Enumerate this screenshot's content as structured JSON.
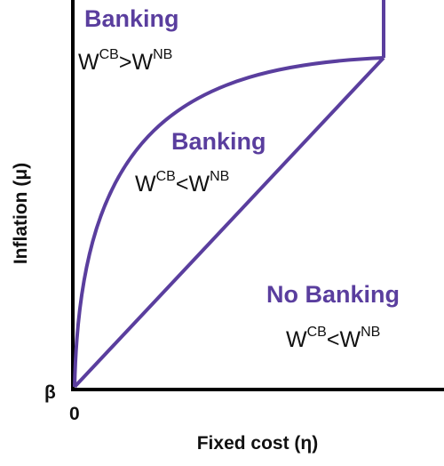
{
  "axes": {
    "x_label": "Fixed cost (η)",
    "y_label": "Inflation (μ)",
    "origin_x": "0",
    "origin_y": "β"
  },
  "regions": [
    {
      "title": "Banking",
      "condition": {
        "left": "W",
        "left_sup": "CB",
        "op": ">",
        "right": "W",
        "right_sup": "NB"
      }
    },
    {
      "title": "Banking",
      "condition": {
        "left": "W",
        "left_sup": "CB",
        "op": "<",
        "right": "W",
        "right_sup": "NB"
      }
    },
    {
      "title": "No Banking",
      "condition": {
        "left": "W",
        "left_sup": "CB",
        "op": "<",
        "right": "W",
        "right_sup": "NB"
      }
    }
  ]
}
